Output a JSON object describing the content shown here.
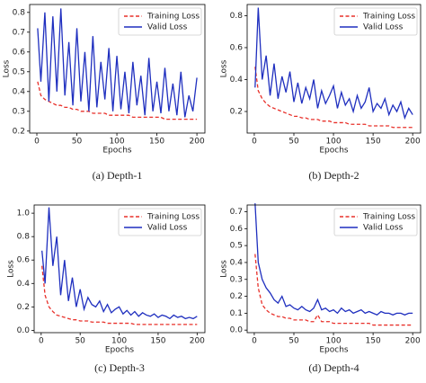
{
  "chart_data": [
    {
      "type": "line",
      "caption": "(a) Depth-1",
      "xlabel": "Epochs",
      "ylabel": "Loss",
      "legend": "upper right",
      "xlim": [
        -9,
        210
      ],
      "xticks": [
        0,
        50,
        100,
        150,
        200
      ],
      "ylim": [
        0.19,
        0.84
      ],
      "yticks": [
        0.2,
        0.3,
        0.4,
        0.5,
        0.6,
        0.7,
        0.8
      ],
      "x": [
        1,
        5,
        10,
        15,
        20,
        25,
        30,
        35,
        40,
        45,
        50,
        55,
        60,
        65,
        70,
        75,
        80,
        85,
        90,
        95,
        100,
        105,
        110,
        115,
        120,
        125,
        130,
        135,
        140,
        145,
        150,
        155,
        160,
        165,
        170,
        175,
        180,
        185,
        190,
        195,
        200
      ],
      "series": [
        {
          "name": "Training Loss",
          "color": "#e8302a",
          "linestyle": "dashed",
          "values": [
            0.45,
            0.38,
            0.36,
            0.35,
            0.34,
            0.33,
            0.33,
            0.32,
            0.32,
            0.31,
            0.31,
            0.3,
            0.3,
            0.3,
            0.29,
            0.29,
            0.29,
            0.29,
            0.28,
            0.28,
            0.28,
            0.28,
            0.28,
            0.28,
            0.27,
            0.27,
            0.27,
            0.27,
            0.27,
            0.27,
            0.27,
            0.27,
            0.26,
            0.26,
            0.26,
            0.26,
            0.26,
            0.26,
            0.26,
            0.26,
            0.26
          ]
        },
        {
          "name": "Valid Loss",
          "color": "#1f2fbf",
          "linestyle": "solid",
          "values": [
            0.72,
            0.45,
            0.8,
            0.35,
            0.78,
            0.4,
            0.82,
            0.38,
            0.65,
            0.33,
            0.72,
            0.35,
            0.6,
            0.3,
            0.68,
            0.32,
            0.55,
            0.36,
            0.62,
            0.3,
            0.58,
            0.31,
            0.5,
            0.29,
            0.55,
            0.33,
            0.48,
            0.28,
            0.57,
            0.3,
            0.45,
            0.29,
            0.52,
            0.3,
            0.44,
            0.28,
            0.5,
            0.27,
            0.38,
            0.3,
            0.47
          ]
        }
      ]
    },
    {
      "type": "line",
      "caption": "(b) Depth-2",
      "xlabel": "Epochs",
      "ylabel": "Loss",
      "legend": "upper right",
      "xlim": [
        -9,
        210
      ],
      "xticks": [
        0,
        50,
        100,
        150,
        200
      ],
      "ylim": [
        0.065,
        0.87
      ],
      "yticks": [
        0.2,
        0.4,
        0.6,
        0.8
      ],
      "x": [
        1,
        5,
        10,
        15,
        20,
        25,
        30,
        35,
        40,
        45,
        50,
        55,
        60,
        65,
        70,
        75,
        80,
        85,
        90,
        95,
        100,
        105,
        110,
        115,
        120,
        125,
        130,
        135,
        140,
        145,
        150,
        155,
        160,
        165,
        170,
        175,
        180,
        185,
        190,
        195,
        200
      ],
      "series": [
        {
          "name": "Training Loss",
          "color": "#e8302a",
          "linestyle": "dashed",
          "values": [
            0.48,
            0.33,
            0.28,
            0.25,
            0.23,
            0.22,
            0.21,
            0.2,
            0.19,
            0.18,
            0.17,
            0.17,
            0.16,
            0.16,
            0.15,
            0.15,
            0.15,
            0.14,
            0.14,
            0.14,
            0.13,
            0.13,
            0.13,
            0.13,
            0.12,
            0.12,
            0.12,
            0.12,
            0.12,
            0.11,
            0.11,
            0.11,
            0.11,
            0.11,
            0.11,
            0.1,
            0.1,
            0.1,
            0.1,
            0.1,
            0.1
          ]
        },
        {
          "name": "Valid Loss",
          "color": "#1f2fbf",
          "linestyle": "solid",
          "values": [
            0.35,
            0.85,
            0.4,
            0.55,
            0.3,
            0.5,
            0.28,
            0.42,
            0.32,
            0.45,
            0.26,
            0.38,
            0.25,
            0.35,
            0.28,
            0.4,
            0.22,
            0.33,
            0.25,
            0.3,
            0.36,
            0.22,
            0.32,
            0.24,
            0.28,
            0.2,
            0.3,
            0.22,
            0.26,
            0.35,
            0.2,
            0.25,
            0.22,
            0.28,
            0.18,
            0.24,
            0.2,
            0.26,
            0.16,
            0.22,
            0.18
          ]
        }
      ]
    },
    {
      "type": "line",
      "caption": "(c) Depth-3",
      "xlabel": "Epochs",
      "ylabel": "Loss",
      "legend": "upper right",
      "xlim": [
        -9,
        210
      ],
      "xticks": [
        0,
        50,
        100,
        150,
        200
      ],
      "ylim": [
        -0.02,
        1.07
      ],
      "yticks": [
        {
          "value": 0,
          "label": "0.0"
        },
        0.2,
        0.4,
        0.6,
        0.8,
        {
          "value": 1,
          "label": "1.0"
        }
      ],
      "x": [
        1,
        5,
        10,
        15,
        20,
        25,
        30,
        35,
        40,
        45,
        50,
        55,
        60,
        65,
        70,
        75,
        80,
        85,
        90,
        95,
        100,
        105,
        110,
        115,
        120,
        125,
        130,
        135,
        140,
        145,
        150,
        155,
        160,
        165,
        170,
        175,
        180,
        185,
        190,
        195,
        200
      ],
      "series": [
        {
          "name": "Training Loss",
          "color": "#e8302a",
          "linestyle": "dashed",
          "values": [
            0.55,
            0.3,
            0.2,
            0.16,
            0.13,
            0.12,
            0.11,
            0.1,
            0.09,
            0.09,
            0.08,
            0.08,
            0.08,
            0.07,
            0.07,
            0.07,
            0.07,
            0.06,
            0.06,
            0.06,
            0.06,
            0.06,
            0.06,
            0.06,
            0.05,
            0.05,
            0.05,
            0.05,
            0.05,
            0.05,
            0.05,
            0.05,
            0.05,
            0.05,
            0.05,
            0.05,
            0.05,
            0.05,
            0.05,
            0.05,
            0.05
          ]
        },
        {
          "name": "Valid Loss",
          "color": "#1f2fbf",
          "linestyle": "solid",
          "values": [
            0.68,
            0.4,
            1.05,
            0.55,
            0.8,
            0.3,
            0.6,
            0.25,
            0.45,
            0.2,
            0.35,
            0.18,
            0.28,
            0.22,
            0.2,
            0.25,
            0.16,
            0.22,
            0.15,
            0.18,
            0.2,
            0.14,
            0.17,
            0.13,
            0.16,
            0.12,
            0.15,
            0.13,
            0.12,
            0.14,
            0.11,
            0.13,
            0.12,
            0.1,
            0.13,
            0.11,
            0.12,
            0.1,
            0.11,
            0.1,
            0.12
          ]
        }
      ]
    },
    {
      "type": "line",
      "caption": "(d) Depth-4",
      "xlabel": "Epochs",
      "ylabel": "Loss",
      "legend": "upper right",
      "xlim": [
        -9,
        210
      ],
      "xticks": [
        0,
        50,
        100,
        150,
        200
      ],
      "ylim": [
        -0.015,
        0.74
      ],
      "yticks": [
        {
          "value": 0,
          "label": "0.0"
        },
        0.1,
        0.2,
        0.3,
        0.4,
        0.5,
        0.6,
        0.7
      ],
      "x": [
        1,
        5,
        10,
        15,
        20,
        25,
        30,
        35,
        40,
        45,
        50,
        55,
        60,
        65,
        70,
        75,
        80,
        85,
        90,
        95,
        100,
        105,
        110,
        115,
        120,
        125,
        130,
        135,
        140,
        145,
        150,
        155,
        160,
        165,
        170,
        175,
        180,
        185,
        190,
        195,
        200
      ],
      "series": [
        {
          "name": "Training Loss",
          "color": "#e8302a",
          "linestyle": "dashed",
          "values": [
            0.45,
            0.25,
            0.15,
            0.12,
            0.1,
            0.09,
            0.08,
            0.08,
            0.07,
            0.07,
            0.06,
            0.06,
            0.06,
            0.06,
            0.05,
            0.05,
            0.09,
            0.05,
            0.05,
            0.05,
            0.04,
            0.04,
            0.04,
            0.04,
            0.04,
            0.04,
            0.04,
            0.04,
            0.04,
            0.04,
            0.03,
            0.03,
            0.03,
            0.03,
            0.03,
            0.03,
            0.03,
            0.03,
            0.03,
            0.03,
            0.03
          ]
        },
        {
          "name": "Valid Loss",
          "color": "#1f2fbf",
          "linestyle": "solid",
          "values": [
            0.75,
            0.4,
            0.3,
            0.25,
            0.22,
            0.18,
            0.16,
            0.2,
            0.14,
            0.15,
            0.13,
            0.12,
            0.14,
            0.12,
            0.11,
            0.13,
            0.18,
            0.12,
            0.13,
            0.11,
            0.12,
            0.1,
            0.13,
            0.11,
            0.12,
            0.1,
            0.11,
            0.12,
            0.1,
            0.11,
            0.1,
            0.09,
            0.11,
            0.1,
            0.1,
            0.09,
            0.1,
            0.1,
            0.09,
            0.1,
            0.1
          ]
        }
      ]
    }
  ]
}
